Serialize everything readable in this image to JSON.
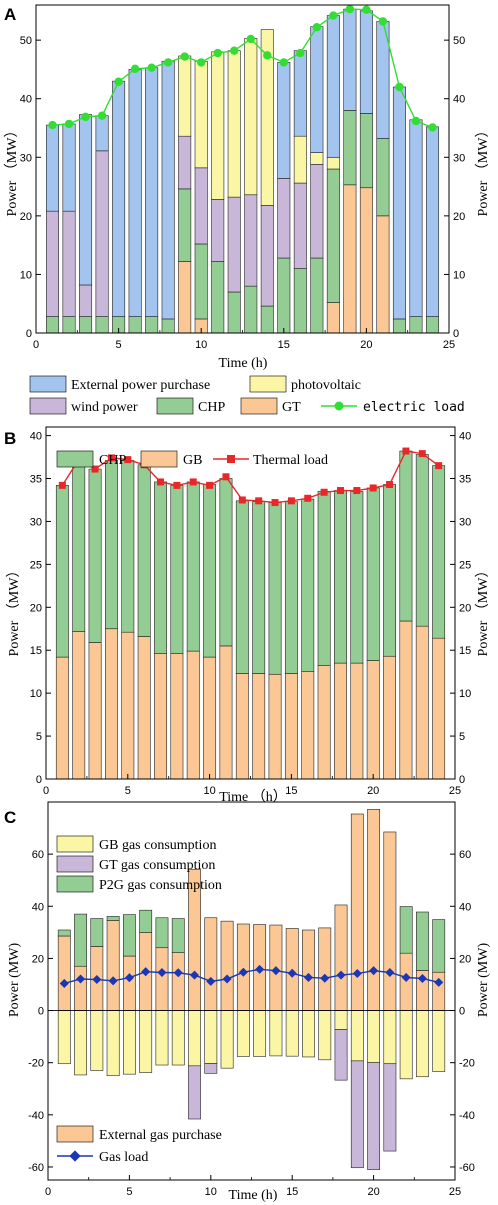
{
  "colors": {
    "external": "#a3c4ee",
    "pv": "#fbf6a5",
    "wind": "#c8b7d9",
    "chp": "#94cd93",
    "gt": "#fac795",
    "gb": "#fac795",
    "elec_line": "#33dd33",
    "thermal_line": "#e8272a",
    "gas_line": "#1a37b7",
    "gb_gas": "#fbf6a5",
    "gt_gas": "#c8b7d9",
    "p2g_gas": "#94cd93",
    "ext_gas": "#fac795"
  },
  "chart_data": [
    {
      "panel": "A",
      "type": "bar",
      "stacked": true,
      "xlabel": "Time (h)",
      "ylabel_left": "Power （MW）",
      "ylabel_right": "Power （MW）",
      "xlim": [
        0,
        25
      ],
      "ylim": [
        0,
        56
      ],
      "xticks": [
        0,
        5,
        10,
        15,
        20,
        25
      ],
      "yticks": [
        0,
        10,
        20,
        30,
        40,
        50
      ],
      "x": [
        1,
        2,
        3,
        4,
        5,
        6,
        7,
        8,
        9,
        10,
        11,
        12,
        13,
        14,
        15,
        16,
        17,
        18,
        19,
        20,
        21,
        22,
        23,
        24
      ],
      "series": [
        {
          "name": "GT",
          "color_key": "gt",
          "values": [
            0,
            0,
            0,
            0,
            0,
            0,
            0,
            0,
            12.2,
            2.4,
            0,
            0,
            0,
            0,
            0,
            0,
            0,
            5.2,
            25.3,
            24.8,
            20,
            0,
            0,
            0
          ]
        },
        {
          "name": "CHP",
          "color_key": "chp",
          "values": [
            2.8,
            2.8,
            2.8,
            2.8,
            2.8,
            2.8,
            2.8,
            2.4,
            12.4,
            12.8,
            12.2,
            7.0,
            8.0,
            4.6,
            12.8,
            11.0,
            12.8,
            22.8,
            12.7,
            12.7,
            13.2,
            2.4,
            2.8,
            2.8
          ]
        },
        {
          "name": "wind power",
          "color_key": "wind",
          "values": [
            18,
            18,
            5.4,
            28.3,
            0,
            0,
            0,
            0,
            9.0,
            13.0,
            10.6,
            16.2,
            15.6,
            17.2,
            13.6,
            14.6,
            16.0,
            0,
            0,
            0,
            0,
            0,
            0,
            0
          ]
        },
        {
          "name": "photovoltaic",
          "color_key": "pv",
          "values": [
            0,
            0,
            0,
            0,
            0,
            0,
            0,
            0,
            13.7,
            18.2,
            25.2,
            25.0,
            26.7,
            30.0,
            0,
            8.0,
            2.0,
            2.0,
            0,
            0,
            0,
            0,
            0,
            0
          ]
        },
        {
          "name": "External power purchase",
          "color_key": "external",
          "values": [
            14.7,
            14.9,
            29.1,
            6.0,
            40.2,
            42.2,
            42.5,
            44.0,
            0,
            0,
            0,
            0,
            0,
            0,
            19.8,
            14.6,
            21.5,
            24.2,
            17.3,
            17.5,
            20,
            39.6,
            33.6,
            32.4
          ]
        }
      ],
      "line": {
        "name": "electric load",
        "color_key": "elec_line",
        "values": [
          35.5,
          35.7,
          36.9,
          37.1,
          42.9,
          45.1,
          45.3,
          46.2,
          47.2,
          46.2,
          47.8,
          48.2,
          50.2,
          47.4,
          46.2,
          47.8,
          52.2,
          54.2,
          55.3,
          55.2,
          53.2,
          42.0,
          36.2,
          35.1
        ]
      },
      "legend": [
        {
          "label": "External power purchase",
          "color_key": "external",
          "kind": "box"
        },
        {
          "label": "photovoltaic",
          "color_key": "pv",
          "kind": "box"
        },
        {
          "label": "wind power",
          "color_key": "wind",
          "kind": "box"
        },
        {
          "label": "CHP",
          "color_key": "chp",
          "kind": "box"
        },
        {
          "label": "GT",
          "color_key": "gt",
          "kind": "box"
        },
        {
          "label": "electric load",
          "color_key": "elec_line",
          "kind": "line-circle"
        }
      ]
    },
    {
      "panel": "B",
      "type": "bar",
      "stacked": true,
      "xlabel": "Time （h）",
      "ylabel_left": "Power （MW）",
      "ylabel_right": "Power （MW）",
      "xlim": [
        0,
        25
      ],
      "ylim": [
        0,
        41
      ],
      "xticks": [
        0,
        5,
        10,
        15,
        20,
        25
      ],
      "yticks": [
        0,
        5,
        10,
        15,
        20,
        25,
        30,
        35,
        40
      ],
      "x": [
        1,
        2,
        3,
        4,
        5,
        6,
        7,
        8,
        9,
        10,
        11,
        12,
        13,
        14,
        15,
        16,
        17,
        18,
        19,
        20,
        21,
        22,
        23,
        24
      ],
      "series": [
        {
          "name": "GB",
          "color_key": "gb",
          "values": [
            14.2,
            17.2,
            15.9,
            17.5,
            17.1,
            16.6,
            14.6,
            14.6,
            14.9,
            14.2,
            15.5,
            12.3,
            12.3,
            12.2,
            12.3,
            12.5,
            13.2,
            13.5,
            13.5,
            13.8,
            14.3,
            18.4,
            17.8,
            16.4
          ]
        },
        {
          "name": "CHP",
          "color_key": "chp",
          "values": [
            20.0,
            19.8,
            20.2,
            19.6,
            20.0,
            20.0,
            20.0,
            19.6,
            19.7,
            20.1,
            19.5,
            20.1,
            20.0,
            20.0,
            20.0,
            20.1,
            20.3,
            20.1,
            20.0,
            20.1,
            20.0,
            19.8,
            20.0,
            20.1
          ]
        }
      ],
      "line": {
        "name": "Thermal load",
        "color_key": "thermal_line",
        "values": [
          34.2,
          37.2,
          36.1,
          37.4,
          37.2,
          36.6,
          34.6,
          34.2,
          34.6,
          34.2,
          35.2,
          32.5,
          32.4,
          32.2,
          32.4,
          32.7,
          33.4,
          33.6,
          33.6,
          33.9,
          34.3,
          38.2,
          37.9,
          36.5
        ]
      },
      "legend": [
        {
          "label": "CHP",
          "color_key": "chp",
          "kind": "box"
        },
        {
          "label": "GB",
          "color_key": "gb",
          "kind": "box"
        },
        {
          "label": "Thermal load",
          "color_key": "thermal_line",
          "kind": "line-square"
        }
      ]
    },
    {
      "panel": "C",
      "type": "bar",
      "stacked": true,
      "xlabel": "Time (h)",
      "ylabel_left": "Power (MW)",
      "ylabel_right": "Power (MW)",
      "xlim": [
        0,
        25
      ],
      "ylim": [
        -65,
        80
      ],
      "xticks": [
        0,
        5,
        10,
        15,
        20,
        25
      ],
      "yticks": [
        -60,
        -40,
        -20,
        0,
        20,
        40,
        60
      ],
      "x": [
        1,
        2,
        3,
        4,
        5,
        6,
        7,
        8,
        9,
        10,
        11,
        12,
        13,
        14,
        15,
        16,
        17,
        18,
        19,
        20,
        21,
        22,
        23,
        24
      ],
      "series": [
        {
          "name": "External gas purchase",
          "color_key": "ext_gas",
          "values": [
            28.6,
            17.0,
            24.6,
            34.6,
            20.9,
            29.9,
            24.1,
            22.2,
            54.1,
            35.6,
            34.3,
            33.2,
            33.0,
            32.8,
            31.5,
            30.9,
            31.7,
            40.5,
            75.4,
            77.2,
            68.5,
            22.0,
            15.4,
            14.7
          ]
        },
        {
          "name": "P2G gas consumption",
          "color_key": "p2g_gas",
          "values": [
            2.3,
            20.0,
            10.7,
            1.5,
            15.9,
            8.6,
            11.5,
            13.1,
            0,
            0,
            0,
            0,
            0,
            0,
            0,
            0,
            0,
            0,
            0,
            0,
            0,
            17.9,
            22.4,
            20.2
          ]
        },
        {
          "name": "GB gas consumption",
          "color_key": "gb_gas",
          "values": [
            -20.4,
            -24.7,
            -23.0,
            -25.0,
            -24.4,
            -23.8,
            -20.9,
            -20.9,
            -21.2,
            -20.3,
            -22.1,
            -17.6,
            -17.6,
            -17.4,
            -17.5,
            -17.8,
            -18.9,
            -7.3,
            -19.3,
            -20.0,
            -20.4,
            -26.2,
            -25.4,
            -23.4
          ]
        },
        {
          "name": "GT gas consumption",
          "color_key": "gt_gas",
          "values": [
            0,
            0,
            0,
            0,
            0,
            0,
            0,
            0,
            -20.4,
            -3.8,
            0,
            0,
            0,
            0,
            0,
            0,
            0,
            -19.4,
            -41.0,
            -41.0,
            -33.5,
            0,
            0,
            0
          ]
        }
      ],
      "line": {
        "name": "Gas load",
        "color_key": "gas_line",
        "values": [
          10.4,
          12.1,
          11.9,
          11.4,
          12.6,
          14.9,
          14.6,
          14.5,
          13.6,
          11.2,
          12.1,
          14.7,
          15.8,
          15.3,
          14.3,
          12.7,
          12.4,
          13.6,
          14.2,
          15.3,
          14.6,
          12.7,
          12.3,
          10.8
        ]
      },
      "legend": [
        {
          "label": "GB gas consumption",
          "color_key": "gb_gas",
          "kind": "box"
        },
        {
          "label": "GT gas consumption",
          "color_key": "gt_gas",
          "kind": "box"
        },
        {
          "label": "P2G gas consumption",
          "color_key": "p2g_gas",
          "kind": "box"
        },
        {
          "label": "External gas purchase",
          "color_key": "ext_gas",
          "kind": "box"
        },
        {
          "label": "Gas load",
          "color_key": "gas_line",
          "kind": "line-diamond"
        }
      ]
    }
  ]
}
